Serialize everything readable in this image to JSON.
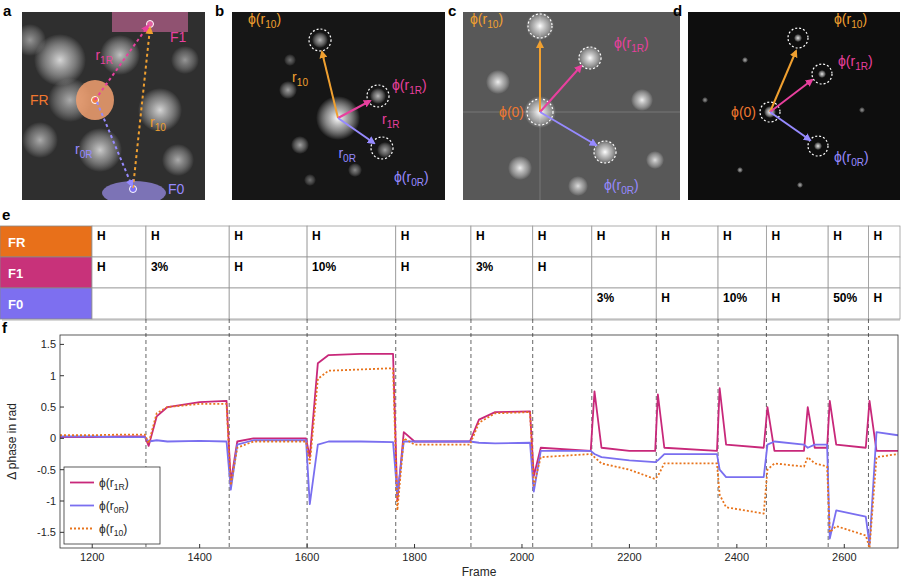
{
  "panels": [
    {
      "letter": "a",
      "labels": [
        {
          "text": "F1"
        },
        {
          "text": "FR"
        },
        {
          "text": "F0"
        },
        {
          "text": "r",
          "sub": "1R"
        },
        {
          "text": "r",
          "sub": "10"
        },
        {
          "text": "r",
          "sub": "0R"
        }
      ]
    },
    {
      "letter": "b",
      "labels": [
        {
          "text": "ϕ(r",
          "sub": "10",
          "tail": ")"
        },
        {
          "text": "r",
          "sub": "10"
        },
        {
          "text": "ϕ(r",
          "sub": "1R",
          "tail": ")"
        },
        {
          "text": "r",
          "sub": "1R"
        },
        {
          "text": "r",
          "sub": "0R"
        },
        {
          "text": "ϕ(r",
          "sub": "0R",
          "tail": ")"
        }
      ]
    },
    {
      "letter": "c",
      "labels": [
        {
          "text": "ϕ(r",
          "sub": "10",
          "tail": ")"
        },
        {
          "text": "ϕ(r",
          "sub": "1R",
          "tail": ")"
        },
        {
          "text": "ϕ(0)"
        },
        {
          "text": "ϕ(r",
          "sub": "0R",
          "tail": ")"
        }
      ]
    },
    {
      "letter": "d",
      "labels": [
        {
          "text": "ϕ(r",
          "sub": "10",
          "tail": ")"
        },
        {
          "text": "ϕ(r",
          "sub": "1R",
          "tail": ")"
        },
        {
          "text": "ϕ(0)"
        },
        {
          "text": "ϕ(r",
          "sub": "0R",
          "tail": ")"
        }
      ]
    }
  ],
  "table": {
    "letter": "e",
    "rows": [
      {
        "header": "FR",
        "cells": [
          "H",
          "H",
          "H",
          "H",
          "H",
          "H",
          "H",
          "H",
          "H",
          "H",
          "H",
          "H",
          "H"
        ]
      },
      {
        "header": "F1",
        "cells": [
          "H",
          "3%",
          "H",
          "10%",
          "H",
          "3%",
          "H",
          null,
          null,
          null,
          null,
          null,
          null
        ]
      },
      {
        "header": "F0",
        "cells": [
          null,
          null,
          null,
          null,
          null,
          null,
          null,
          "3%",
          "H",
          "10%",
          "H",
          "50%",
          "H"
        ]
      }
    ]
  },
  "chart_letter": "f",
  "chart_data": {
    "type": "line",
    "x_label": "Frame",
    "y_label": "Δ phase in rad",
    "x": [
      1140,
      1200,
      1250,
      1298,
      1305,
      1320,
      1340,
      1400,
      1450,
      1458,
      1470,
      1500,
      1598,
      1605,
      1620,
      1640,
      1700,
      1760,
      1768,
      1780,
      1800,
      1903,
      1920,
      1950,
      2015,
      2022,
      2035,
      2128,
      2135,
      2148,
      2200,
      2248,
      2253,
      2265,
      2363,
      2368,
      2380,
      2450,
      2457,
      2470,
      2525,
      2532,
      2545,
      2568,
      2573,
      2585,
      2640,
      2647,
      2660,
      2700
    ],
    "series": [
      {
        "name": {
          "text": "ϕ(r",
          "sub": "1R",
          "tail": ")"
        },
        "color": "#c8287a",
        "line_style": "solid",
        "values": [
          0.02,
          0.02,
          0.03,
          0.03,
          -0.12,
          0.35,
          0.5,
          0.58,
          0.6,
          -0.7,
          -0.05,
          0.0,
          0.0,
          -0.3,
          1.2,
          1.33,
          1.35,
          1.35,
          -1.0,
          0.1,
          -0.05,
          -0.05,
          0.3,
          0.42,
          0.43,
          -0.6,
          -0.15,
          -0.2,
          0.75,
          -0.15,
          -0.2,
          -0.2,
          0.7,
          -0.15,
          -0.2,
          0.8,
          -0.1,
          -0.15,
          0.5,
          -0.2,
          -0.2,
          0.5,
          -0.15,
          -0.15,
          0.6,
          -0.1,
          -0.15,
          0.6,
          -0.2,
          -0.2
        ]
      },
      {
        "name": {
          "text": "ϕ(r",
          "sub": "0R",
          "tail": ")"
        },
        "color": "#7a6ff0",
        "line_style": "solid",
        "values": [
          0.03,
          0.03,
          0.02,
          0.02,
          -0.05,
          -0.03,
          -0.05,
          -0.04,
          -0.05,
          -0.82,
          -0.1,
          -0.03,
          -0.03,
          -1.05,
          -0.1,
          -0.05,
          -0.05,
          -0.06,
          -0.9,
          -0.05,
          -0.05,
          -0.05,
          -0.07,
          -0.08,
          -0.07,
          -0.85,
          -0.2,
          -0.2,
          -0.25,
          -0.3,
          -0.35,
          -0.38,
          -0.35,
          -0.25,
          -0.25,
          -0.5,
          -0.62,
          -0.62,
          -0.1,
          -0.05,
          -0.1,
          -0.15,
          -0.1,
          -0.1,
          -1.6,
          -1.15,
          -1.25,
          -1.7,
          0.1,
          0.05
        ]
      },
      {
        "name": {
          "text": "ϕ(r",
          "sub": "10",
          "tail": ")"
        },
        "color": "#e8741c",
        "line_style": "dotted",
        "values": [
          0.05,
          0.05,
          0.06,
          0.06,
          -0.08,
          0.4,
          0.5,
          0.55,
          0.55,
          -0.75,
          -0.15,
          -0.05,
          -0.05,
          -0.4,
          0.95,
          1.08,
          1.1,
          1.12,
          -1.15,
          0.0,
          -0.1,
          -0.1,
          0.25,
          0.4,
          0.42,
          -0.75,
          -0.3,
          -0.25,
          -0.3,
          -0.4,
          -0.5,
          -0.65,
          -0.6,
          -0.4,
          -0.4,
          -0.9,
          -1.1,
          -1.2,
          -0.5,
          -0.4,
          -0.45,
          -0.3,
          -0.4,
          -0.45,
          -1.5,
          -1.4,
          -1.55,
          -1.75,
          -0.3,
          -0.25
        ]
      }
    ],
    "vlines": [
      1300,
      1455,
      1600,
      1765,
      1905,
      2020,
      2130,
      2250,
      2365,
      2455,
      2570,
      2645
    ],
    "xlim": [
      1140,
      2700
    ],
    "xticks": [
      1200,
      1400,
      1600,
      1800,
      2000,
      2200,
      2400,
      2600
    ],
    "ylim": [
      -1.75,
      1.65
    ],
    "yticks": [
      -1.5,
      -1,
      -0.5,
      0,
      0.5,
      1,
      1.5
    ],
    "grid": false,
    "legend": "lower left"
  }
}
